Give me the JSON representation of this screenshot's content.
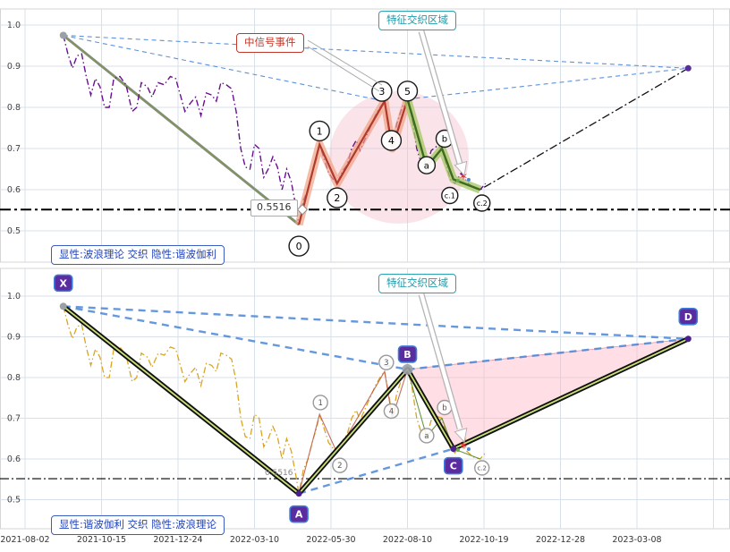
{
  "chart_data": {
    "type": "line",
    "title": "",
    "x_axis": {
      "tick_labels": [
        "2021-08-02",
        "2021-10-15",
        "2021-12-24",
        "2022-03-10",
        "2022-05-30",
        "2022-08-10",
        "2022-10-19",
        "2022-12-28",
        "2023-03-08"
      ]
    },
    "y_axis": {
      "ticks": [
        0.5,
        0.6,
        0.7,
        0.8,
        0.9,
        1.0
      ],
      "range": [
        0.44,
        1.04
      ]
    },
    "threshold": {
      "value": 0.5516,
      "label": "0.5516"
    },
    "price_series": {
      "name": "price",
      "points": [
        [
          0.5,
          0.975
        ],
        [
          0.56,
          0.93
        ],
        [
          0.62,
          0.895
        ],
        [
          0.68,
          0.925
        ],
        [
          0.74,
          0.93
        ],
        [
          0.8,
          0.875
        ],
        [
          0.86,
          0.83
        ],
        [
          0.92,
          0.87
        ],
        [
          0.98,
          0.85
        ],
        [
          1.04,
          0.8
        ],
        [
          1.1,
          0.8
        ],
        [
          1.16,
          0.87
        ],
        [
          1.24,
          0.875
        ],
        [
          1.32,
          0.855
        ],
        [
          1.4,
          0.79
        ],
        [
          1.46,
          0.8
        ],
        [
          1.52,
          0.86
        ],
        [
          1.6,
          0.85
        ],
        [
          1.66,
          0.825
        ],
        [
          1.74,
          0.86
        ],
        [
          1.82,
          0.855
        ],
        [
          1.9,
          0.875
        ],
        [
          1.97,
          0.87
        ],
        [
          2.03,
          0.83
        ],
        [
          2.09,
          0.79
        ],
        [
          2.16,
          0.81
        ],
        [
          2.23,
          0.825
        ],
        [
          2.3,
          0.78
        ],
        [
          2.37,
          0.835
        ],
        [
          2.44,
          0.83
        ],
        [
          2.5,
          0.815
        ],
        [
          2.56,
          0.86
        ],
        [
          2.63,
          0.855
        ],
        [
          2.7,
          0.845
        ],
        [
          2.76,
          0.79
        ],
        [
          2.82,
          0.7
        ],
        [
          2.88,
          0.655
        ],
        [
          2.94,
          0.65
        ],
        [
          3.0,
          0.71
        ],
        [
          3.06,
          0.7
        ],
        [
          3.12,
          0.63
        ],
        [
          3.18,
          0.65
        ],
        [
          3.24,
          0.68
        ],
        [
          3.3,
          0.655
        ],
        [
          3.36,
          0.6
        ],
        [
          3.42,
          0.65
        ],
        [
          3.48,
          0.62
        ],
        [
          3.54,
          0.56
        ],
        [
          3.58,
          0.515
        ],
        [
          3.64,
          0.575
        ],
        [
          3.7,
          0.6
        ],
        [
          3.76,
          0.645
        ],
        [
          3.81,
          0.675
        ],
        [
          3.85,
          0.71
        ],
        [
          3.91,
          0.675
        ],
        [
          3.97,
          0.64
        ],
        [
          4.03,
          0.625
        ],
        [
          4.08,
          0.615
        ],
        [
          4.15,
          0.645
        ],
        [
          4.21,
          0.66
        ],
        [
          4.27,
          0.7
        ],
        [
          4.33,
          0.72
        ],
        [
          4.38,
          0.695
        ],
        [
          4.45,
          0.725
        ],
        [
          4.52,
          0.755
        ],
        [
          4.58,
          0.78
        ],
        [
          4.64,
          0.8
        ],
        [
          4.7,
          0.815
        ],
        [
          4.76,
          0.755
        ],
        [
          4.8,
          0.7
        ],
        [
          4.86,
          0.76
        ],
        [
          4.93,
          0.8
        ],
        [
          5.0,
          0.82
        ],
        [
          5.06,
          0.775
        ],
        [
          5.12,
          0.7
        ],
        [
          5.18,
          0.665
        ],
        [
          5.25,
          0.655
        ],
        [
          5.31,
          0.695
        ],
        [
          5.38,
          0.705
        ],
        [
          5.45,
          0.7
        ],
        [
          5.51,
          0.66
        ],
        [
          5.56,
          0.625
        ],
        [
          5.62,
          0.615
        ],
        [
          5.7,
          0.64
        ],
        [
          5.78,
          0.618
        ],
        [
          5.86,
          0.605
        ],
        [
          5.95,
          0.6
        ],
        [
          6.02,
          0.615
        ]
      ]
    },
    "pivots": {
      "impulse": {
        "labels": [
          "0",
          "1",
          "2",
          "3",
          "4",
          "5"
        ],
        "points": [
          [
            3.58,
            0.515
          ],
          [
            3.85,
            0.71
          ],
          [
            4.08,
            0.615
          ],
          [
            4.7,
            0.815
          ],
          [
            4.8,
            0.7
          ],
          [
            5.0,
            0.82
          ]
        ]
      },
      "corrective": {
        "labels": [
          "a",
          "b",
          "c.1",
          "c.2"
        ],
        "points": [
          [
            5.25,
            0.655
          ],
          [
            5.45,
            0.7
          ],
          [
            5.6,
            0.625
          ],
          [
            5.95,
            0.6
          ]
        ]
      },
      "harmonic": {
        "labels": [
          "X",
          "A",
          "B",
          "C",
          "D"
        ],
        "points": [
          [
            0.5,
            0.975
          ],
          [
            3.58,
            0.515
          ],
          [
            5.0,
            0.82
          ],
          [
            5.6,
            0.625
          ],
          [
            8.67,
            0.895
          ]
        ]
      }
    },
    "confluence_point": [
      5.73,
      0.633
    ],
    "panels": [
      {
        "id": "elliott",
        "legend": "显性:波浪理论 交织 隐性:谐波伽利",
        "zone_label": "特征交织区域",
        "event_label": "中信号事件",
        "price_color": "#6a0d91"
      },
      {
        "id": "harmonic",
        "legend": "显性:谐波伽利 交织 隐性:波浪理论",
        "zone_label": "特征交织区域",
        "price_color": "#d9a520"
      }
    ],
    "colors": {
      "price_top": "#6a0d91",
      "price_bottom": "#d9a520",
      "impulse_core": "#b03a2e",
      "impulse_glow": "#f0a183",
      "corrective_core": "#3f6b1e",
      "corrective_glow": "#a9c86b",
      "trend_grey": "#8a8a8a",
      "trend_green": "#7a9a4a",
      "dashed_blue": "#4a86d8",
      "pink_zone": "#f3b8c6",
      "badge_fill": "#5a2ca0",
      "badge_border": "#3b7dd8",
      "teal": "#1f9aa8",
      "red": "#c0392b",
      "legend_blue": "#2244bb",
      "star_red": "#e03131",
      "grid": "#d8e0ea"
    }
  }
}
